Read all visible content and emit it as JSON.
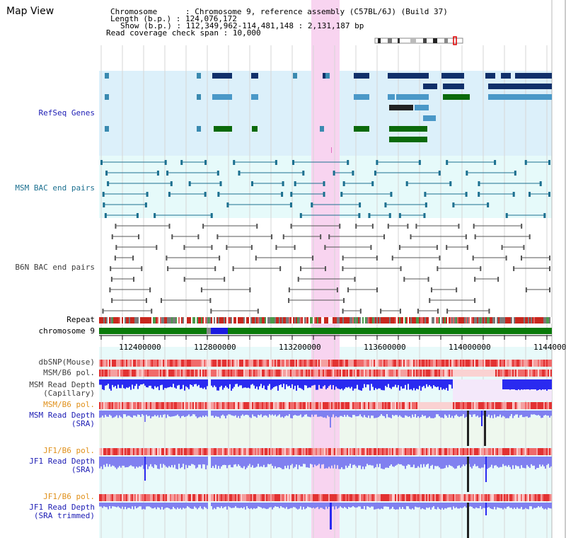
{
  "header": {
    "title": "Map View",
    "info": [
      {
        "key": "Chromosome",
        "value": "Chromosome 9, reference assembly (C57BL/6J) (Build 37)"
      },
      {
        "key": "Length (b.p.)",
        "value": "124,076,172"
      },
      {
        "key": "Show (b.p.)",
        "value": "112,349,962-114,481,148 : 2,131,187 bp"
      },
      {
        "key": "Read coverage check span",
        "value": "10,000"
      }
    ]
  },
  "tracks": {
    "refseq": "RefSeq Genes",
    "msm_bac": "MSM BAC end pairs",
    "b6n_bac": "B6N BAC end pairs",
    "repeat": "Repeat",
    "chromosome": "chromosome 9",
    "dbsnp": "dbSNP(Mouse)",
    "msm_b6_pol": "MSM/B6 pol.",
    "msm_depth_cap_1": "MSM Read Depth",
    "msm_depth_cap_2": "(Capillary)",
    "msm_b6_pol_2": "MSM/B6 pol.",
    "msm_depth_sra_1": "MSM Read Depth",
    "msm_depth_sra_2": "(SRA)",
    "jf1_b6_pol": "JF1/B6 pol.",
    "jf1_depth_sra_1": "JF1 Read Depth",
    "jf1_depth_sra_2": "(SRA)",
    "jf1_b6_pol_2": "JF1/B6 pol.",
    "jf1_depth_trim_1": "JF1 Read Depth",
    "jf1_depth_trim_2": "(SRA trimmed)"
  },
  "axis": {
    "ticks": [
      "112400000",
      "112800000",
      "113200000",
      "113600000",
      "114000000",
      "1144000"
    ]
  },
  "colors": {
    "refseq_bg": "#dcf0fa",
    "msm_bac_bg": "#e6fafa",
    "highlight": "#f8d4f0",
    "chromosome": "#0a7a0a",
    "chromosome_sel": "#1a1ae0",
    "depth": "#2a2af0",
    "depth_light": "#8080f0",
    "pol": "#e83c3c"
  }
}
